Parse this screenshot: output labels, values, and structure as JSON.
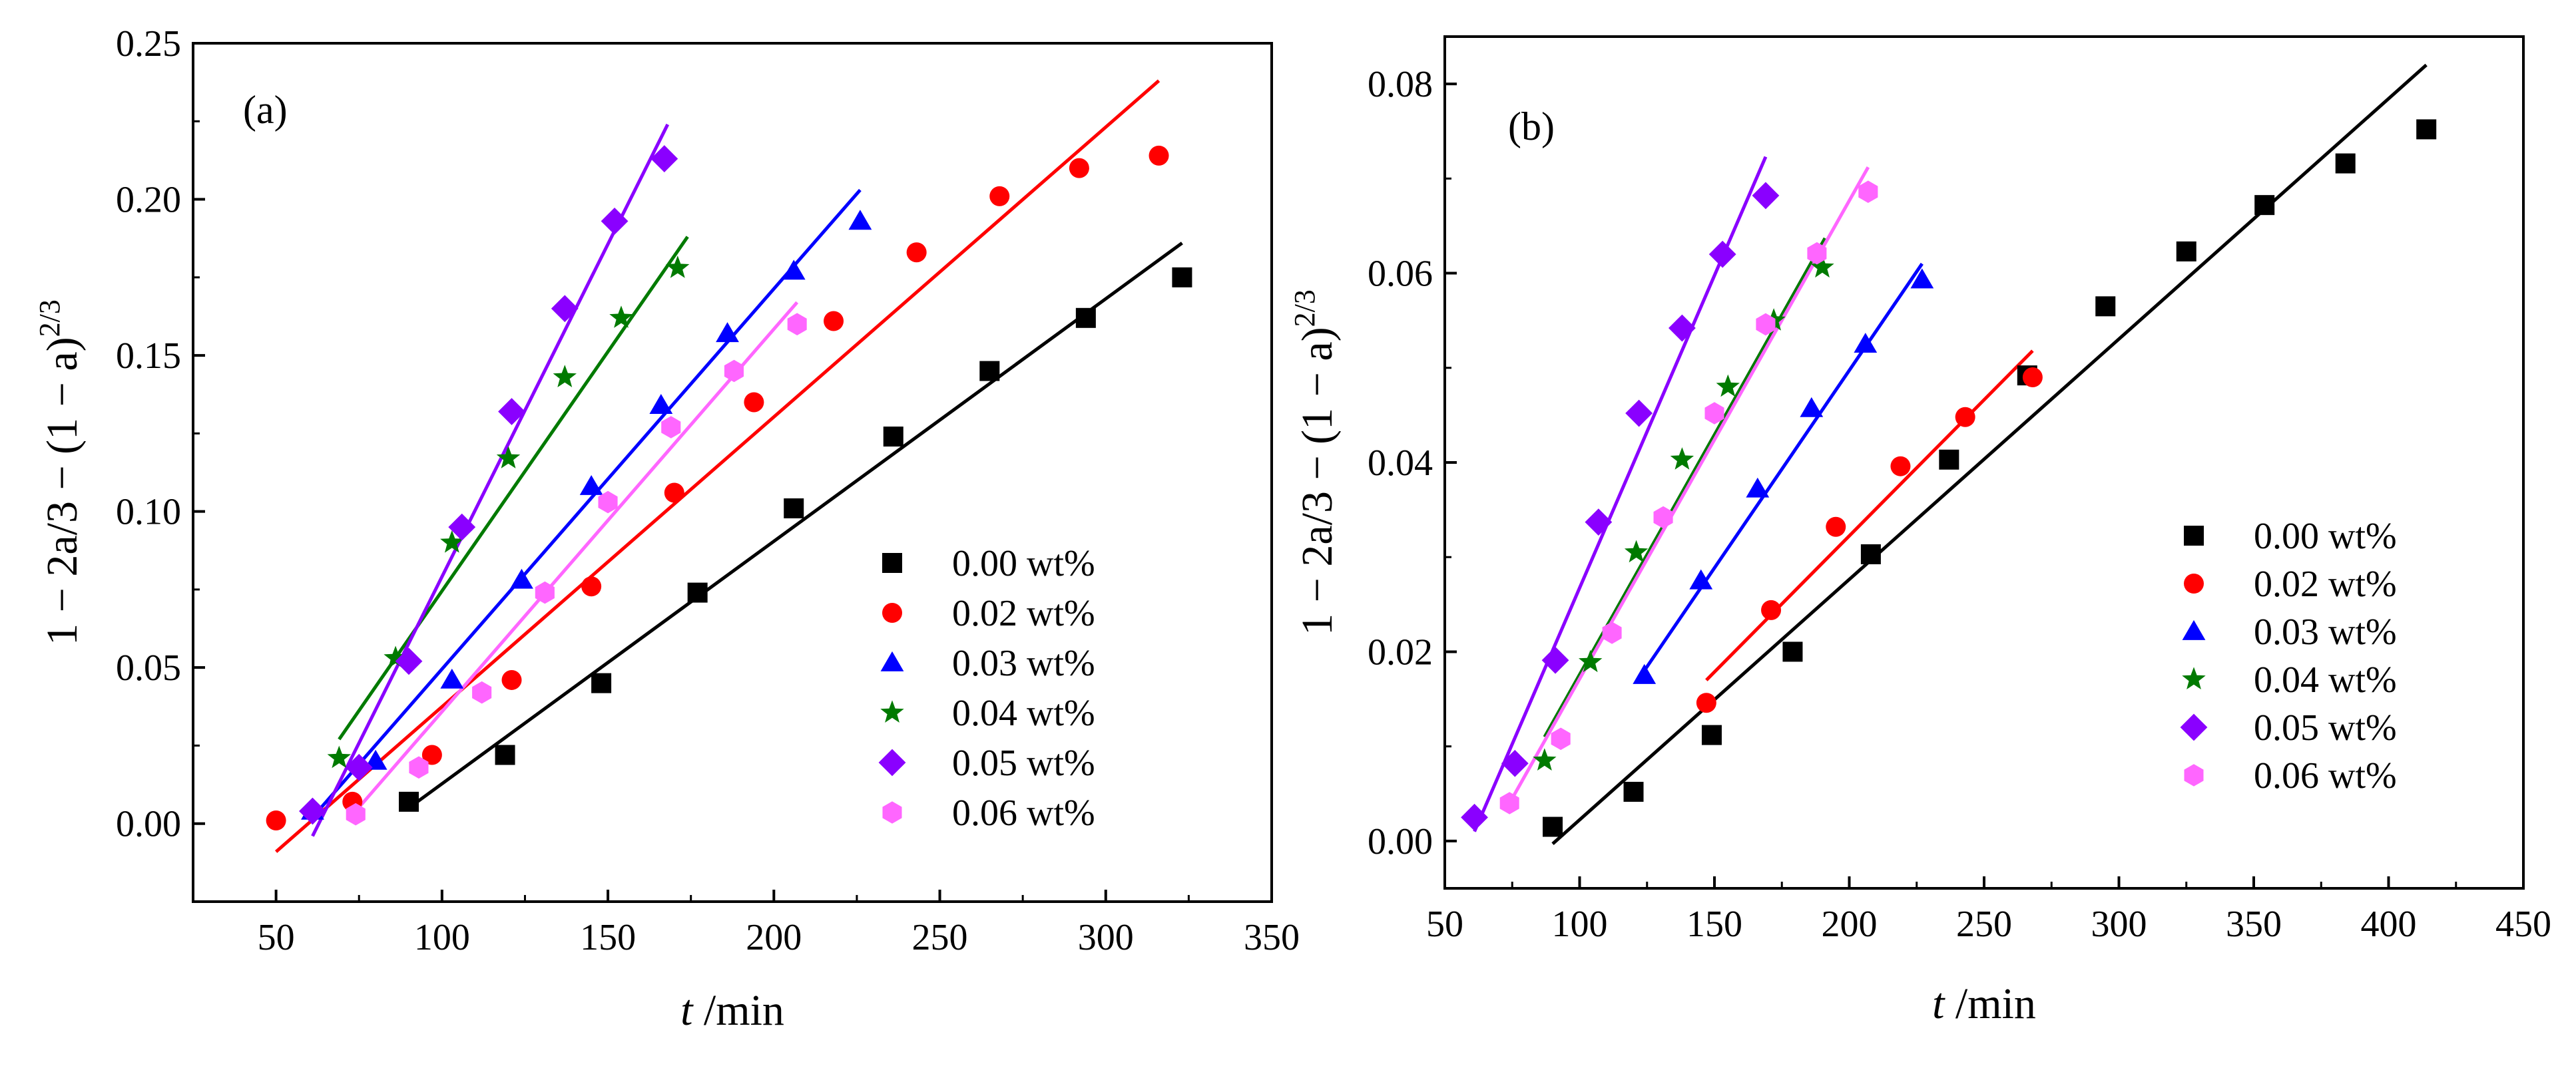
{
  "chart_data": [
    {
      "type": "scatter",
      "panel_label": "(a)",
      "xlabel": {
        "var": "t",
        "unit": " /min"
      },
      "ylabel": {
        "main": "1 − 2a/3 − (1 − a)",
        "sup": "2/3"
      },
      "xlim": [
        25,
        350
      ],
      "ylim": [
        -0.025,
        0.25
      ],
      "xticks": [
        50,
        100,
        150,
        200,
        250,
        300,
        350
      ],
      "xtick_labels": [
        "50",
        "100",
        "150",
        "200",
        "250",
        "300",
        "350"
      ],
      "yticks": [
        0.0,
        0.05,
        0.1,
        0.15,
        0.2,
        0.25
      ],
      "ytick_labels": [
        "0.00",
        "0.05",
        "0.10",
        "0.15",
        "0.20",
        "0.25"
      ],
      "legend_position": "bottom-right",
      "grid": false,
      "series": [
        {
          "name": "0.00 wt%",
          "color": "#000000",
          "marker": "square",
          "x": [
            90,
            119,
            148,
            177,
            206,
            236,
            265,
            294,
            323
          ],
          "y": [
            0.007,
            0.022,
            0.045,
            0.074,
            0.101,
            0.124,
            0.145,
            0.162,
            0.175
          ],
          "fit": {
            "x": [
              90,
              323
            ],
            "y": [
              0.005,
              0.186
            ]
          }
        },
        {
          "name": "0.02 wt%",
          "color": "#ff0000",
          "marker": "circle",
          "x": [
            50,
            73,
            97,
            121,
            145,
            170,
            194,
            218,
            243,
            268,
            292,
            316
          ],
          "y": [
            0.001,
            0.007,
            0.022,
            0.046,
            0.076,
            0.106,
            0.135,
            0.161,
            0.183,
            0.201,
            0.21,
            0.214
          ],
          "fit": {
            "x": [
              50,
              316
            ],
            "y": [
              -0.009,
              0.238
            ]
          }
        },
        {
          "name": "0.03 wt%",
          "color": "#0000ff",
          "marker": "triangle",
          "x": [
            61,
            80,
            103,
            124,
            145,
            166,
            186,
            206,
            226
          ],
          "y": [
            0.004,
            0.02,
            0.046,
            0.078,
            0.108,
            0.134,
            0.157,
            0.177,
            0.193
          ],
          "fit": {
            "x": [
              61,
              226
            ],
            "y": [
              0.002,
              0.203
            ]
          }
        },
        {
          "name": "0.04 wt%",
          "color": "#007a00",
          "marker": "star",
          "x": [
            69,
            86,
            103,
            120,
            137,
            154,
            171
          ],
          "y": [
            0.021,
            0.053,
            0.09,
            0.117,
            0.143,
            0.162,
            0.178
          ],
          "fit": {
            "x": [
              69,
              174
            ],
            "y": [
              0.027,
              0.188
            ]
          }
        },
        {
          "name": "0.05 wt%",
          "color": "#8a00ff",
          "marker": "diamond",
          "x": [
            61,
            75,
            90,
            106,
            121,
            137,
            152,
            167
          ],
          "y": [
            0.004,
            0.018,
            0.052,
            0.095,
            0.132,
            0.165,
            0.193,
            0.213
          ],
          "fit": {
            "x": [
              61,
              168
            ],
            "y": [
              -0.004,
              0.224
            ]
          }
        },
        {
          "name": "0.06 wt%",
          "color": "#ff66ff",
          "marker": "hexagon",
          "x": [
            74,
            93,
            112,
            131,
            150,
            169,
            188,
            207
          ],
          "y": [
            0.003,
            0.018,
            0.042,
            0.074,
            0.103,
            0.127,
            0.145,
            0.16
          ],
          "fit": {
            "x": [
              74,
              207
            ],
            "y": [
              0.004,
              0.167
            ]
          }
        }
      ]
    },
    {
      "type": "scatter",
      "panel_label": "(b)",
      "xlabel": {
        "var": "t",
        "unit": " /min"
      },
      "ylabel": {
        "main": "1 − 2a/3 − (1 − a)",
        "sup": "2/3"
      },
      "xlim": [
        50,
        450
      ],
      "ylim": [
        -0.005,
        0.085
      ],
      "xticks": [
        50,
        100,
        150,
        200,
        250,
        300,
        350,
        400,
        450
      ],
      "xtick_labels": [
        "50",
        "100",
        "150",
        "200",
        "250",
        "300",
        "350",
        "400",
        "450"
      ],
      "yticks": [
        0.0,
        0.02,
        0.04,
        0.06,
        0.08
      ],
      "ytick_labels": [
        "0.00",
        "0.02",
        "0.04",
        "0.06",
        "0.08"
      ],
      "legend_position": "bottom-right",
      "grid": false,
      "series": [
        {
          "name": "0.00 wt%",
          "color": "#000000",
          "marker": "square",
          "x": [
            90,
            120,
            149,
            179,
            208,
            237,
            266,
            295,
            325,
            354,
            384,
            414
          ],
          "y": [
            0.0015,
            0.0052,
            0.0112,
            0.02,
            0.0303,
            0.0403,
            0.0492,
            0.0565,
            0.0623,
            0.0672,
            0.0716,
            0.0752
          ],
          "fit": {
            "x": [
              90,
              414
            ],
            "y": [
              -0.0003,
              0.082
            ]
          }
        },
        {
          "name": "0.02 wt%",
          "color": "#ff0000",
          "marker": "circle",
          "x": [
            147,
            171,
            195,
            219,
            243,
            268
          ],
          "y": [
            0.0146,
            0.0244,
            0.0332,
            0.0396,
            0.0448,
            0.049
          ],
          "fit": {
            "x": [
              147,
              268
            ],
            "y": [
              0.017,
              0.0518
            ]
          }
        },
        {
          "name": "0.03 wt%",
          "color": "#0000ff",
          "marker": "triangle",
          "x": [
            124,
            145,
            166,
            186,
            206,
            227
          ],
          "y": [
            0.0175,
            0.0275,
            0.0372,
            0.0457,
            0.0525,
            0.0593
          ],
          "fit": {
            "x": [
              124,
              227
            ],
            "y": [
              0.018,
              0.061
            ]
          }
        },
        {
          "name": "0.04 wt%",
          "color": "#007a00",
          "marker": "star",
          "x": [
            87,
            104,
            121,
            138,
            155,
            172,
            190
          ],
          "y": [
            0.0085,
            0.0189,
            0.0305,
            0.0403,
            0.048,
            0.055,
            0.0606
          ],
          "fit": {
            "x": [
              87,
              191
            ],
            "y": [
              0.011,
              0.0637
            ]
          }
        },
        {
          "name": "0.05 wt%",
          "color": "#8a00ff",
          "marker": "diamond",
          "x": [
            61,
            76,
            91,
            107,
            122,
            138,
            153,
            169
          ],
          "y": [
            0.0025,
            0.0082,
            0.0191,
            0.0337,
            0.0452,
            0.0542,
            0.062,
            0.0682
          ],
          "fit": {
            "x": [
              61,
              169
            ],
            "y": [
              0.001,
              0.0723
            ]
          }
        },
        {
          "name": "0.06 wt%",
          "color": "#ff66ff",
          "marker": "hexagon",
          "x": [
            74,
            93,
            112,
            131,
            150,
            169,
            188,
            207
          ],
          "y": [
            0.004,
            0.0108,
            0.022,
            0.0342,
            0.0452,
            0.0546,
            0.0621,
            0.0686
          ],
          "fit": {
            "x": [
              74,
              207
            ],
            "y": [
              0.004,
              0.0712
            ]
          }
        }
      ]
    }
  ]
}
